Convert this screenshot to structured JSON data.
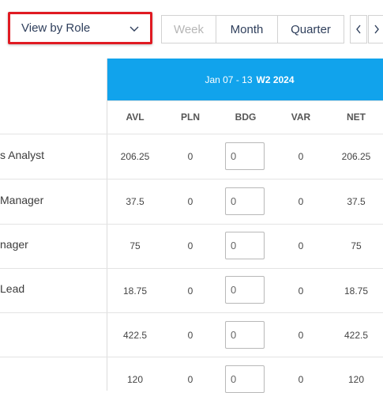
{
  "role_select": {
    "label": "View by Role"
  },
  "period_buttons": [
    "Week",
    "Month",
    "Quarter"
  ],
  "week_header": {
    "range": "Jan 07 - 13",
    "week": "W2 2024"
  },
  "columns": [
    "AVL",
    "PLN",
    "BDG",
    "VAR",
    "NET"
  ],
  "rows": [
    {
      "role": "s Analyst",
      "avl": "206.25",
      "pln": "0",
      "bdg": "0",
      "var": "0",
      "net": "206.25"
    },
    {
      "role": "Manager",
      "avl": "37.5",
      "pln": "0",
      "bdg": "0",
      "var": "0",
      "net": "37.5"
    },
    {
      "role": "nager",
      "avl": "75",
      "pln": "0",
      "bdg": "0",
      "var": "0",
      "net": "75"
    },
    {
      "role": " Lead",
      "avl": "18.75",
      "pln": "0",
      "bdg": "0",
      "var": "0",
      "net": "18.75"
    },
    {
      "role": "",
      "avl": "422.5",
      "pln": "0",
      "bdg": "0",
      "var": "0",
      "net": "422.5"
    },
    {
      "role": "",
      "avl": "120",
      "pln": "0",
      "bdg": "0",
      "var": "0",
      "net": "120"
    }
  ],
  "colors": {
    "header_blue": "#11a3ec",
    "highlight_red": "#e01a22"
  }
}
